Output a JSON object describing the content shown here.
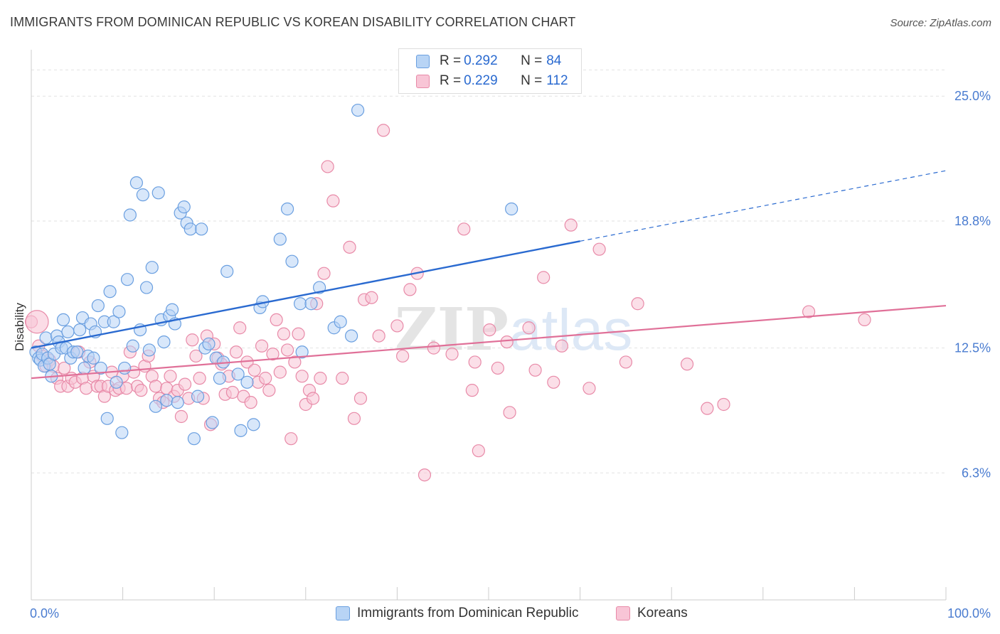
{
  "title": "IMMIGRANTS FROM DOMINICAN REPUBLIC VS KOREAN DISABILITY CORRELATION CHART",
  "source": "Source: ZipAtlas.com",
  "watermark": {
    "zip": "ZIP",
    "atlas": "atlas"
  },
  "legend": {
    "blue": {
      "r_label": "R = ",
      "r_value": "0.292",
      "n_label": "N = ",
      "n_value": "84"
    },
    "pink": {
      "r_label": "R = ",
      "r_value": "0.229",
      "n_label": "N = ",
      "n_value": "112"
    }
  },
  "colors": {
    "blue_fill": "#b8d4f5",
    "blue_stroke": "#6a9fe0",
    "blue_line": "#2a6ad0",
    "pink_fill": "#f8c5d6",
    "pink_stroke": "#e88aa8",
    "pink_line": "#e07098",
    "tick_label": "#4a7cd0"
  },
  "chart_data": {
    "type": "scatter",
    "title": "IMMIGRANTS FROM DOMINICAN REPUBLIC VS KOREAN DISABILITY CORRELATION CHART",
    "xlabel": "",
    "ylabel": "Disability",
    "xlim": [
      0,
      100
    ],
    "ylim": [
      0,
      27.3
    ],
    "x_tick_labels": [
      {
        "value": 0,
        "label": "0.0%"
      },
      {
        "value": 100,
        "label": "100.0%"
      }
    ],
    "y_ticks": [
      {
        "value": 6.3,
        "label": "6.3%"
      },
      {
        "value": 12.5,
        "label": "12.5%"
      },
      {
        "value": 18.8,
        "label": "18.8%"
      },
      {
        "value": 25.0,
        "label": "25.0%"
      }
    ],
    "grid": true,
    "legend_position": "top-center",
    "series": [
      {
        "name": "Immigrants from Dominican Republic",
        "color": "#6a9fe0",
        "trend": {
          "x0": 0,
          "y0": 12.5,
          "x1": 60,
          "y1": 17.8,
          "dashed_to_x": 100,
          "dashed_to_y": 21.3
        },
        "points": [
          [
            0.5,
            12.3
          ],
          [
            0.8,
            12.0
          ],
          [
            1.0,
            11.9
          ],
          [
            1.2,
            12.2
          ],
          [
            1.4,
            11.6
          ],
          [
            1.6,
            13.0
          ],
          [
            1.8,
            12.0
          ],
          [
            2.0,
            11.7
          ],
          [
            2.2,
            11.1
          ],
          [
            2.5,
            12.2
          ],
          [
            2.8,
            13.1
          ],
          [
            3.0,
            12.8
          ],
          [
            3.3,
            12.5
          ],
          [
            3.5,
            13.9
          ],
          [
            3.8,
            12.5
          ],
          [
            4.0,
            13.3
          ],
          [
            4.3,
            12.0
          ],
          [
            4.6,
            12.3
          ],
          [
            5.0,
            12.3
          ],
          [
            5.3,
            13.4
          ],
          [
            5.6,
            14.0
          ],
          [
            5.8,
            11.5
          ],
          [
            6.2,
            12.1
          ],
          [
            6.5,
            13.7
          ],
          [
            6.8,
            12.0
          ],
          [
            7.0,
            13.3
          ],
          [
            7.3,
            14.6
          ],
          [
            7.6,
            11.5
          ],
          [
            8.0,
            13.8
          ],
          [
            8.3,
            9.0
          ],
          [
            8.6,
            15.3
          ],
          [
            9.0,
            13.8
          ],
          [
            9.3,
            10.8
          ],
          [
            9.6,
            14.3
          ],
          [
            9.9,
            8.3
          ],
          [
            10.2,
            11.5
          ],
          [
            10.5,
            15.9
          ],
          [
            10.8,
            19.1
          ],
          [
            11.1,
            12.6
          ],
          [
            11.5,
            20.7
          ],
          [
            11.9,
            13.4
          ],
          [
            12.2,
            20.1
          ],
          [
            12.6,
            15.5
          ],
          [
            12.9,
            12.4
          ],
          [
            13.2,
            16.5
          ],
          [
            13.6,
            9.6
          ],
          [
            13.9,
            20.2
          ],
          [
            14.2,
            13.9
          ],
          [
            14.5,
            12.8
          ],
          [
            14.8,
            9.9
          ],
          [
            15.1,
            14.1
          ],
          [
            15.4,
            14.4
          ],
          [
            15.7,
            13.7
          ],
          [
            16.0,
            9.8
          ],
          [
            16.3,
            19.2
          ],
          [
            16.7,
            19.5
          ],
          [
            17.0,
            18.7
          ],
          [
            17.4,
            18.4
          ],
          [
            17.8,
            8.0
          ],
          [
            18.2,
            10.1
          ],
          [
            18.6,
            18.4
          ],
          [
            19.0,
            12.5
          ],
          [
            19.4,
            12.7
          ],
          [
            19.8,
            8.8
          ],
          [
            20.2,
            12.0
          ],
          [
            20.6,
            11.0
          ],
          [
            21.0,
            11.8
          ],
          [
            21.4,
            16.3
          ],
          [
            22.6,
            11.2
          ],
          [
            22.9,
            8.4
          ],
          [
            23.6,
            10.8
          ],
          [
            24.3,
            8.7
          ],
          [
            25.0,
            14.5
          ],
          [
            25.3,
            14.8
          ],
          [
            27.2,
            17.9
          ],
          [
            28.0,
            19.4
          ],
          [
            28.5,
            16.8
          ],
          [
            29.4,
            14.7
          ],
          [
            29.6,
            12.3
          ],
          [
            30.6,
            14.7
          ],
          [
            31.5,
            15.5
          ],
          [
            33.1,
            13.5
          ],
          [
            33.8,
            13.8
          ],
          [
            35.0,
            13.1
          ],
          [
            35.7,
            24.3
          ],
          [
            52.5,
            19.4
          ]
        ]
      },
      {
        "name": "Koreans",
        "color": "#e88aa8",
        "trend": {
          "x0": 0,
          "y0": 11.0,
          "x1": 100,
          "y1": 14.6
        },
        "points": [
          [
            0.0,
            13.8
          ],
          [
            0.8,
            12.6
          ],
          [
            1.2,
            12.1
          ],
          [
            1.6,
            11.6
          ],
          [
            2.0,
            11.9
          ],
          [
            2.4,
            11.6
          ],
          [
            2.8,
            11.0
          ],
          [
            3.2,
            10.6
          ],
          [
            3.6,
            11.5
          ],
          [
            4.0,
            10.6
          ],
          [
            4.4,
            11.0
          ],
          [
            4.8,
            10.8
          ],
          [
            5.2,
            12.3
          ],
          [
            5.6,
            11.0
          ],
          [
            6.0,
            10.5
          ],
          [
            6.4,
            11.8
          ],
          [
            6.8,
            11.1
          ],
          [
            7.2,
            10.6
          ],
          [
            7.6,
            10.6
          ],
          [
            8.0,
            10.1
          ],
          [
            8.4,
            10.6
          ],
          [
            8.8,
            11.3
          ],
          [
            9.2,
            10.4
          ],
          [
            9.6,
            10.5
          ],
          [
            10.0,
            11.1
          ],
          [
            10.4,
            10.5
          ],
          [
            10.8,
            12.3
          ],
          [
            11.2,
            11.3
          ],
          [
            11.6,
            10.6
          ],
          [
            12.0,
            10.4
          ],
          [
            12.4,
            11.6
          ],
          [
            12.8,
            12.1
          ],
          [
            13.2,
            11.1
          ],
          [
            13.6,
            10.6
          ],
          [
            14.0,
            10.0
          ],
          [
            14.4,
            9.8
          ],
          [
            14.8,
            10.5
          ],
          [
            15.2,
            11.1
          ],
          [
            15.6,
            10.1
          ],
          [
            16.0,
            10.4
          ],
          [
            16.4,
            9.1
          ],
          [
            16.8,
            10.7
          ],
          [
            17.2,
            10.0
          ],
          [
            17.6,
            12.9
          ],
          [
            18.0,
            12.1
          ],
          [
            18.4,
            11.0
          ],
          [
            18.8,
            10.0
          ],
          [
            19.2,
            13.1
          ],
          [
            19.6,
            8.7
          ],
          [
            20.0,
            12.7
          ],
          [
            20.4,
            12.0
          ],
          [
            20.8,
            11.7
          ],
          [
            21.2,
            10.2
          ],
          [
            21.6,
            11.1
          ],
          [
            22.0,
            10.3
          ],
          [
            22.4,
            12.3
          ],
          [
            22.8,
            13.5
          ],
          [
            23.2,
            10.1
          ],
          [
            23.6,
            11.8
          ],
          [
            24.0,
            9.8
          ],
          [
            24.4,
            11.4
          ],
          [
            24.8,
            10.8
          ],
          [
            25.2,
            12.6
          ],
          [
            25.6,
            11.0
          ],
          [
            26.0,
            10.4
          ],
          [
            26.4,
            12.2
          ],
          [
            26.8,
            13.9
          ],
          [
            27.2,
            11.3
          ],
          [
            27.6,
            13.2
          ],
          [
            28.0,
            12.4
          ],
          [
            28.4,
            8.0
          ],
          [
            28.8,
            11.8
          ],
          [
            29.2,
            13.2
          ],
          [
            29.6,
            11.1
          ],
          [
            30.0,
            9.7
          ],
          [
            30.4,
            10.4
          ],
          [
            30.8,
            10.0
          ],
          [
            31.2,
            14.7
          ],
          [
            31.6,
            11.0
          ],
          [
            32.0,
            16.2
          ],
          [
            32.4,
            21.5
          ],
          [
            33.0,
            19.8
          ],
          [
            34.0,
            11.0
          ],
          [
            34.8,
            17.5
          ],
          [
            35.3,
            9.0
          ],
          [
            36.0,
            10.0
          ],
          [
            36.4,
            14.9
          ],
          [
            37.2,
            15.0
          ],
          [
            38.0,
            13.1
          ],
          [
            38.5,
            23.3
          ],
          [
            40.0,
            13.6
          ],
          [
            40.6,
            12.1
          ],
          [
            41.4,
            15.4
          ],
          [
            42.2,
            16.2
          ],
          [
            43.0,
            6.2
          ],
          [
            44.0,
            12.5
          ],
          [
            46.0,
            12.2
          ],
          [
            47.3,
            18.4
          ],
          [
            48.2,
            10.4
          ],
          [
            48.5,
            11.8
          ],
          [
            48.9,
            7.4
          ],
          [
            50.1,
            13.4
          ],
          [
            51.0,
            11.5
          ],
          [
            52.0,
            12.8
          ],
          [
            52.3,
            9.3
          ],
          [
            54.4,
            13.5
          ],
          [
            55.1,
            11.4
          ],
          [
            56.0,
            16.0
          ],
          [
            57.1,
            10.8
          ],
          [
            58.0,
            12.6
          ],
          [
            59.0,
            18.6
          ],
          [
            61.0,
            10.5
          ],
          [
            62.1,
            17.4
          ],
          [
            65.0,
            11.8
          ],
          [
            66.3,
            14.7
          ],
          [
            71.7,
            11.7
          ],
          [
            73.9,
            9.5
          ],
          [
            75.7,
            9.7
          ],
          [
            85.0,
            14.3
          ],
          [
            91.1,
            13.9
          ]
        ]
      }
    ]
  },
  "bottom_legend": [
    {
      "label": "Immigrants from Dominican Republic"
    },
    {
      "label": "Koreans"
    }
  ]
}
